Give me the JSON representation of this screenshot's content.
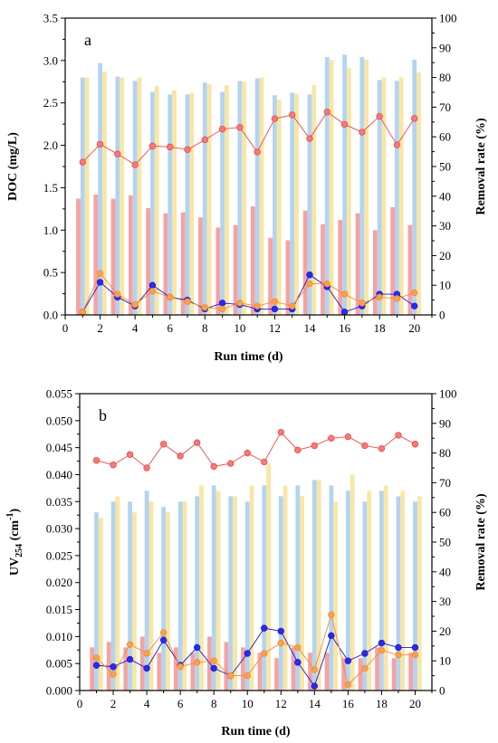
{
  "chart_data": [
    {
      "type": "bar",
      "panel_label": "a",
      "xlabel": "Run time (d)",
      "ylabel": "DOC (mg/L)",
      "y2label": "Removal rate (%)",
      "xlim": [
        0,
        21
      ],
      "ylim": [
        0,
        3.5
      ],
      "y2lim": [
        0,
        100
      ],
      "xticks": [
        "0",
        "2",
        "4",
        "6",
        "8",
        "10",
        "12",
        "14",
        "16",
        "18",
        "20"
      ],
      "yticks": [
        "0.0",
        "0.5",
        "1.0",
        "1.5",
        "2.0",
        "2.5",
        "3.0",
        "3.5"
      ],
      "y2ticks": [
        "0",
        "10",
        "20",
        "30",
        "40",
        "50",
        "60",
        "70",
        "80",
        "90",
        "100"
      ],
      "x": [
        1,
        2,
        3,
        4,
        5,
        6,
        7,
        8,
        9,
        10,
        11,
        12,
        13,
        14,
        15,
        16,
        17,
        18,
        19,
        20
      ],
      "bars": [
        {
          "color": "#f4a3a3",
          "values": [
            1.37,
            1.42,
            1.37,
            1.41,
            1.26,
            1.2,
            1.21,
            1.15,
            1.03,
            1.06,
            1.28,
            0.91,
            0.88,
            1.23,
            1.07,
            1.12,
            1.2,
            1.0,
            1.27,
            1.06
          ]
        },
        {
          "color": "#b3d4f1",
          "values": [
            2.8,
            2.97,
            2.81,
            2.76,
            2.63,
            2.6,
            2.6,
            2.74,
            2.63,
            2.76,
            2.79,
            2.59,
            2.62,
            2.6,
            3.04,
            3.07,
            3.04,
            2.77,
            2.76,
            3.01
          ]
        },
        {
          "color": "#f8e6a6",
          "values": [
            2.8,
            2.87,
            2.8,
            2.8,
            2.7,
            2.65,
            2.62,
            2.72,
            2.71,
            2.75,
            2.8,
            2.54,
            2.61,
            2.71,
            3.01,
            2.91,
            3.01,
            2.8,
            2.8,
            2.86
          ]
        }
      ],
      "lines": [
        {
          "color": "#e44b4b",
          "fill": "#f47a7a",
          "values": [
            51.5,
            57.5,
            54.2,
            50.6,
            56.9,
            56.6,
            55.7,
            59.0,
            62.6,
            63.2,
            54.9,
            66.1,
            67.4,
            59.4,
            68.4,
            64.2,
            61.6,
            66.9,
            57.3,
            66.2
          ]
        },
        {
          "color": "#1a1acf",
          "fill": "#2a2af0",
          "values": [
            1.0,
            11.0,
            6.0,
            3.0,
            10.0,
            6.0,
            5.0,
            2.0,
            4.0,
            3.5,
            2.0,
            2.0,
            2.0,
            13.5,
            9.5,
            1.0,
            3.0,
            7.0,
            7.0,
            3.0
          ]
        },
        {
          "color": "#f08c3c",
          "fill": "#f7a04d",
          "values": [
            1.0,
            14.0,
            7.0,
            3.5,
            8.0,
            6.0,
            4.5,
            2.5,
            2.0,
            4.0,
            3.0,
            4.5,
            3.0,
            10.5,
            10.5,
            7.0,
            4.0,
            6.0,
            5.5,
            7.5
          ]
        }
      ]
    },
    {
      "type": "bar",
      "panel_label": "b",
      "xlabel": "Run time (d)",
      "ylabel": "UV254 (cm-1)",
      "ylabel_main": "UV",
      "ylabel_sub": "254",
      "ylabel_unit": " (cm",
      "ylabel_sup": "-1",
      "ylabel_close": ")",
      "y2label": "Removal rate (%)",
      "xlim": [
        0,
        21
      ],
      "ylim": [
        0,
        0.055
      ],
      "y2lim": [
        0,
        100
      ],
      "xticks": [
        "0",
        "2",
        "4",
        "6",
        "8",
        "10",
        "12",
        "14",
        "16",
        "18",
        "20"
      ],
      "yticks": [
        "0.000",
        "0.005",
        "0.010",
        "0.015",
        "0.020",
        "0.025",
        "0.030",
        "0.035",
        "0.040",
        "0.045",
        "0.050",
        "0.055"
      ],
      "y2ticks": [
        "0",
        "10",
        "20",
        "30",
        "40",
        "50",
        "60",
        "70",
        "80",
        "90",
        "100"
      ],
      "x": [
        1,
        2,
        3,
        4,
        5,
        6,
        7,
        8,
        9,
        10,
        11,
        12,
        13,
        14,
        15,
        16,
        17,
        18,
        19,
        20
      ],
      "bars": [
        {
          "color": "#f4a3a3",
          "values": [
            0.008,
            0.009,
            0.008,
            0.01,
            0.007,
            0.008,
            0.007,
            0.01,
            0.009,
            0.008,
            0.007,
            0.006,
            0.008,
            0.007,
            0.007,
            0.006,
            0.006,
            0.008,
            0.006,
            0.007
          ]
        },
        {
          "color": "#b3d4f1",
          "values": [
            0.033,
            0.035,
            0.035,
            0.037,
            0.034,
            0.035,
            0.036,
            0.038,
            0.036,
            0.035,
            0.038,
            0.036,
            0.038,
            0.039,
            0.038,
            0.037,
            0.035,
            0.037,
            0.036,
            0.035
          ]
        },
        {
          "color": "#f8e6a6",
          "values": [
            0.032,
            0.036,
            0.033,
            0.035,
            0.033,
            0.035,
            0.038,
            0.037,
            0.036,
            0.038,
            0.042,
            0.038,
            0.036,
            0.039,
            0.035,
            0.04,
            0.037,
            0.038,
            0.037,
            0.036
          ]
        }
      ],
      "lines": [
        {
          "color": "#e44b4b",
          "fill": "#f47a7a",
          "values": [
            77.5,
            76.0,
            79.5,
            75.0,
            83.0,
            79.0,
            83.5,
            75.5,
            76.5,
            80.0,
            77.0,
            87.0,
            81.0,
            82.5,
            85.0,
            85.5,
            82.5,
            81.5,
            86.0,
            83.0
          ]
        },
        {
          "color": "#1a1acf",
          "fill": "#2a2af0",
          "values": [
            8.5,
            8.0,
            10.5,
            7.5,
            17.0,
            8.5,
            14.5,
            7.5,
            5.0,
            12.5,
            21.0,
            20.0,
            9.5,
            1.5,
            18.5,
            10.0,
            12.5,
            16.0,
            14.5,
            14.5
          ]
        },
        {
          "color": "#f08c3c",
          "fill": "#f7a04d",
          "values": [
            11.0,
            5.5,
            15.5,
            12.5,
            19.5,
            8.0,
            9.5,
            10.0,
            5.0,
            5.0,
            12.5,
            16.0,
            14.5,
            7.0,
            25.5,
            2.0,
            7.5,
            13.5,
            12.0,
            12.0
          ]
        }
      ]
    }
  ]
}
